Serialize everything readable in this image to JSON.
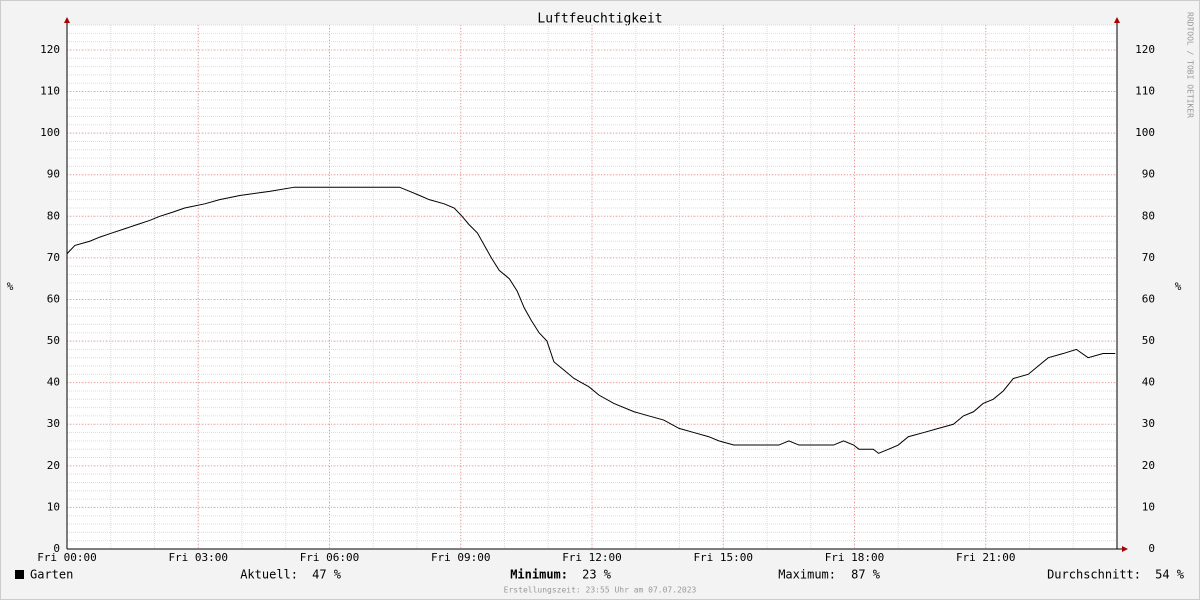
{
  "chart_data": {
    "type": "line",
    "title": "Luftfeuchtigkeit",
    "ylabel": "%",
    "watermark": "RRDTOOL / TOBI OETIKER",
    "x": [
      0,
      0.18,
      0.52,
      0.75,
      1.03,
      1.32,
      1.6,
      1.89,
      2.12,
      2.42,
      2.69,
      3.15,
      3.49,
      3.95,
      4.63,
      5.2,
      7.6,
      7.83,
      8.06,
      8.28,
      8.62,
      8.85,
      9.03,
      9.19,
      9.38,
      9.54,
      9.7,
      9.88,
      10.11,
      10.29,
      10.45,
      10.61,
      10.79,
      10.97,
      11.13,
      11.36,
      11.59,
      11.93,
      12.16,
      12.5,
      12.96,
      13.3,
      13.64,
      13.99,
      14.33,
      14.67,
      14.9,
      15.24,
      16.27,
      16.5,
      16.73,
      17.52,
      17.75,
      17.98,
      18.1,
      18.43,
      18.55,
      18.78,
      19.0,
      19.23,
      19.58,
      19.92,
      20.26,
      20.49,
      20.72,
      20.94,
      21.17,
      21.4,
      21.63,
      21.97,
      22.2,
      22.43,
      22.77,
      23.07,
      23.34,
      23.68,
      23.96
    ],
    "series": [
      {
        "name": "Garten",
        "color": "#000000",
        "values": [
          71,
          73,
          74,
          75,
          76,
          77,
          78,
          79,
          80,
          81,
          82,
          83,
          84,
          85,
          86,
          87,
          87,
          86,
          85,
          84,
          83,
          82,
          80,
          78,
          76,
          73,
          70,
          67,
          65,
          62,
          58,
          55,
          52,
          50,
          45,
          43,
          41,
          39,
          37,
          35,
          33,
          32,
          31,
          29,
          28,
          27,
          26,
          25,
          25,
          26,
          25,
          25,
          26,
          25,
          24,
          24,
          23,
          24,
          25,
          27,
          28,
          29,
          30,
          32,
          33,
          35,
          36,
          38,
          41,
          42,
          44,
          46,
          47,
          48,
          46,
          47,
          47
        ]
      }
    ],
    "xlim": [
      0,
      24
    ],
    "xticks": [
      {
        "value": 0,
        "label": "Fri 00:00"
      },
      {
        "value": 3,
        "label": "Fri 03:00"
      },
      {
        "value": 6,
        "label": "Fri 06:00"
      },
      {
        "value": 9,
        "label": "Fri 09:00"
      },
      {
        "value": 12,
        "label": "Fri 12:00"
      },
      {
        "value": 15,
        "label": "Fri 15:00"
      },
      {
        "value": 18,
        "label": "Fri 18:00"
      },
      {
        "value": 21,
        "label": "Fri 21:00"
      }
    ],
    "ylim": [
      0,
      126
    ],
    "yticks": [
      0,
      10,
      20,
      30,
      40,
      50,
      60,
      70,
      80,
      90,
      100,
      110,
      120
    ],
    "grid": true,
    "stats": [
      {
        "label": "Aktuell:",
        "value": "47 %"
      },
      {
        "label": "Minimum:",
        "value": "23 %"
      },
      {
        "label": "Maximum:",
        "value": "87 %"
      },
      {
        "label": "Durchschnitt:",
        "value": "54 %"
      }
    ],
    "footer": "Erstellungszeit: 23:55 Uhr am 07.07.2023"
  }
}
